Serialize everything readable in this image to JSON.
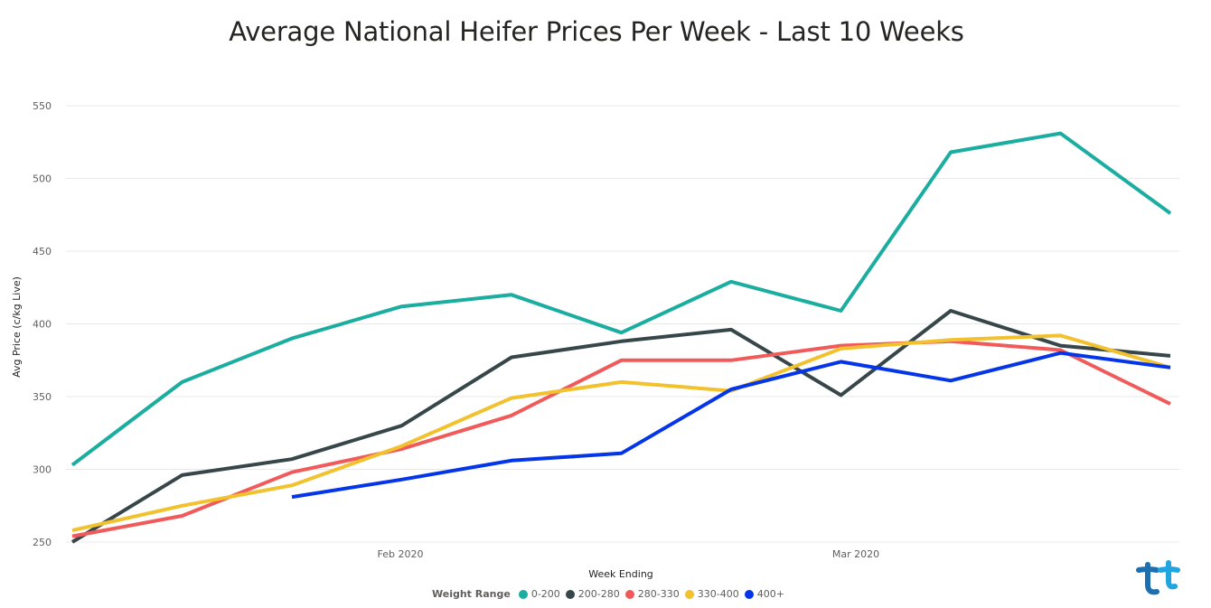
{
  "chart_data": {
    "type": "line",
    "title": "Average National Heifer Prices Per Week - Last 10 Weeks",
    "xlabel": "Week Ending",
    "ylabel": "Avg Price (c/kg Live)",
    "ylim": [
      250,
      550
    ],
    "yticks": [
      250,
      300,
      350,
      400,
      450,
      500,
      550
    ],
    "x_tick_labels": [
      "Feb 2020",
      "Mar 2020"
    ],
    "grid": true,
    "legend": {
      "title": "Weight Range",
      "position": "bottom-center"
    },
    "points_per_series": 11,
    "series": [
      {
        "name": "0-200",
        "color": "#1aada0",
        "values": [
          303,
          360,
          390,
          412,
          420,
          394,
          429,
          409,
          518,
          531,
          476
        ]
      },
      {
        "name": "200-280",
        "color": "#374649",
        "values": [
          250,
          296,
          307,
          330,
          377,
          388,
          396,
          351,
          409,
          385,
          378
        ]
      },
      {
        "name": "280-330",
        "color": "#f05a5a",
        "values": [
          254,
          268,
          298,
          314,
          337,
          375,
          375,
          385,
          388,
          382,
          345
        ]
      },
      {
        "name": "330-400",
        "color": "#f2c12e",
        "values": [
          258,
          275,
          289,
          316,
          349,
          360,
          354,
          383,
          389,
          392,
          370
        ]
      },
      {
        "name": "400+",
        "color": "#0535e8",
        "values": [
          null,
          null,
          281,
          293,
          306,
          311,
          355,
          374,
          361,
          380,
          370
        ]
      }
    ]
  }
}
